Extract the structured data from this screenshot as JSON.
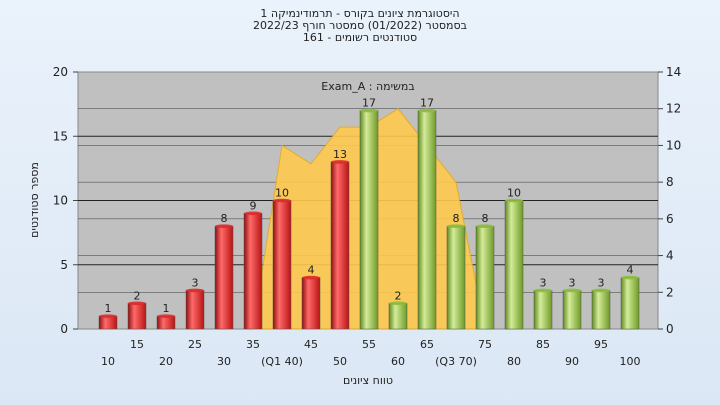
{
  "titles": {
    "line1": "היסטוגרמת ציונים בקורס - תרמודינמיקה 1",
    "line2": "בסמסטר  (01/2022)  סמסטר חורף  2022/23",
    "line3": "סטודנטים רשומים - 161"
  },
  "chart_data": {
    "type": "bar",
    "annotation": "במשימה : Exam_A",
    "xlabel": "טווח ציונים",
    "ylabel": "מספר סטודנטים",
    "ylim": [
      0,
      20
    ],
    "y_ticks": [
      0,
      5,
      10,
      15,
      20
    ],
    "y2lim": [
      0,
      14
    ],
    "y2_ticks": [
      0,
      2,
      4,
      6,
      8,
      10,
      12,
      14
    ],
    "grid": true,
    "categories": [
      "10",
      "15",
      "20",
      "25",
      "30",
      "35",
      "(Q1 40)",
      "45",
      "50",
      "55",
      "60",
      "65",
      "(Q3 70)",
      "75",
      "80",
      "85",
      "90",
      "95",
      "100"
    ],
    "values": [
      1,
      2,
      1,
      3,
      8,
      9,
      10,
      4,
      13,
      17,
      2,
      17,
      8,
      8,
      10,
      3,
      3,
      3,
      4
    ],
    "bar_colors": [
      "#dd2b2b",
      "#dd2b2b",
      "#dd2b2b",
      "#dd2b2b",
      "#dd2b2b",
      "#dd2b2b",
      "#dd2b2b",
      "#dd2b2b",
      "#dd2b2b",
      "#8cbc3c",
      "#8cbc3c",
      "#8cbc3c",
      "#8cbc3c",
      "#8cbc3c",
      "#8cbc3c",
      "#8cbc3c",
      "#8cbc3c",
      "#8cbc3c",
      "#8cbc3c"
    ],
    "area_values": [
      0,
      0,
      0,
      0,
      0,
      0,
      10,
      9,
      11,
      11,
      12,
      10,
      8,
      0,
      0,
      0,
      0,
      0,
      0
    ],
    "area_color": "#ffc94d",
    "colors": {
      "fail": "#dd2b2b",
      "pass": "#8cbc3c",
      "plot_bg": "#c0c0c0"
    }
  }
}
